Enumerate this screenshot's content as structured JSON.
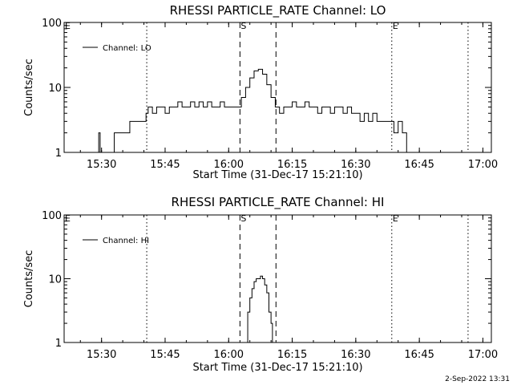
{
  "footer": {
    "date": "2-Sep-2022 13:31"
  },
  "chart_data": [
    {
      "type": "line",
      "title": "RHESSI PARTICLE_RATE Channel: LO",
      "xlabel": "Start Time (31-Dec-17 15:21:10)",
      "ylabel": "Counts/sec",
      "yscale": "log",
      "ylim": [
        1,
        100
      ],
      "xlim": [
        "15:21:10",
        "17:02:00"
      ],
      "x_ticks": [
        "15:30",
        "15:45",
        "16:00",
        "16:15",
        "16:30",
        "16:45",
        "17:00"
      ],
      "y_ticks": [
        "1",
        "10",
        "100"
      ],
      "legend": "Channel: LO",
      "legend_position": "top-left",
      "markers": [
        {
          "label": "E",
          "time": "15:21:10",
          "style": "none"
        },
        {
          "label": "",
          "time": "15:40:40",
          "style": "dotted"
        },
        {
          "label": "S",
          "time": "16:02:40",
          "style": "dashed"
        },
        {
          "label": "",
          "time": "16:11:10",
          "style": "dashed"
        },
        {
          "label": "E",
          "time": "16:38:30",
          "style": "dotted"
        },
        {
          "label": "",
          "time": "16:56:30",
          "style": "dotted"
        }
      ],
      "series": [
        {
          "x": [
            "15:29:00",
            "15:29:20",
            "15:29:40",
            "15:30:00",
            "15:30:20",
            "15:33:00",
            "15:33:30",
            "15:36:40",
            "15:37:10",
            "15:40:30",
            "15:41:00",
            "15:41:30",
            "15:42:00",
            "15:43:00",
            "15:44:00",
            "15:45:00",
            "15:46:00",
            "15:47:00",
            "15:48:00",
            "15:49:00",
            "15:50:00",
            "15:51:00",
            "15:52:00",
            "15:53:00",
            "15:54:00",
            "15:55:00",
            "15:56:00",
            "15:57:00",
            "15:58:00",
            "15:59:00",
            "16:00:00",
            "16:01:00",
            "16:02:00",
            "16:03:00",
            "16:04:00",
            "16:05:00",
            "16:06:00",
            "16:07:00",
            "16:08:00",
            "16:09:00",
            "16:10:00",
            "16:11:00",
            "16:12:00",
            "16:13:00",
            "16:14:00",
            "16:15:00",
            "16:16:00",
            "16:17:00",
            "16:18:00",
            "16:19:00",
            "16:20:00",
            "16:21:00",
            "16:22:00",
            "16:23:00",
            "16:24:00",
            "16:25:00",
            "16:26:00",
            "16:27:00",
            "16:28:00",
            "16:29:00",
            "16:30:00",
            "16:31:00",
            "16:32:00",
            "16:33:00",
            "16:34:00",
            "16:35:00",
            "16:36:00",
            "16:37:00",
            "16:38:00",
            "16:39:00",
            "16:40:00",
            "16:41:00",
            "16:42:00",
            "16:43:00",
            "16:43:40",
            "16:44:00"
          ],
          "values": [
            1,
            2,
            1,
            1,
            1,
            2,
            2,
            3,
            3,
            4,
            5,
            5,
            4,
            5,
            5,
            4,
            5,
            5,
            6,
            5,
            5,
            6,
            5,
            6,
            5,
            6,
            5,
            5,
            6,
            5,
            5,
            5,
            5,
            7,
            10,
            14,
            18,
            19,
            16,
            11,
            7,
            5,
            4,
            5,
            5,
            6,
            5,
            5,
            6,
            5,
            5,
            4,
            5,
            5,
            4,
            5,
            5,
            4,
            5,
            4,
            4,
            3,
            4,
            3,
            4,
            3,
            3,
            3,
            3,
            2,
            3,
            2,
            1,
            1,
            1,
            1
          ]
        }
      ]
    },
    {
      "type": "line",
      "title": "RHESSI PARTICLE_RATE Channel: HI",
      "xlabel": "Start Time (31-Dec-17 15:21:10)",
      "ylabel": "Counts/sec",
      "yscale": "log",
      "ylim": [
        1,
        100
      ],
      "xlim": [
        "15:21:10",
        "17:02:00"
      ],
      "x_ticks": [
        "15:30",
        "15:45",
        "16:00",
        "16:15",
        "16:30",
        "16:45",
        "17:00"
      ],
      "y_ticks": [
        "1",
        "10",
        "100"
      ],
      "legend": "Channel: HI",
      "legend_position": "top-left",
      "markers": [
        {
          "label": "E",
          "time": "15:21:10",
          "style": "none"
        },
        {
          "label": "",
          "time": "15:40:40",
          "style": "dotted"
        },
        {
          "label": "S",
          "time": "16:02:40",
          "style": "dashed"
        },
        {
          "label": "",
          "time": "16:11:10",
          "style": "dashed"
        },
        {
          "label": "E",
          "time": "16:38:30",
          "style": "dotted"
        },
        {
          "label": "",
          "time": "16:56:30",
          "style": "dotted"
        }
      ],
      "series": [
        {
          "x": [
            "16:03:50",
            "16:04:30",
            "16:05:00",
            "16:05:30",
            "16:06:00",
            "16:06:30",
            "16:07:00",
            "16:07:30",
            "16:08:00",
            "16:08:30",
            "16:09:00",
            "16:09:30",
            "16:10:00",
            "16:10:20"
          ],
          "values": [
            1,
            3,
            5,
            7,
            9,
            10,
            10,
            11,
            10,
            8,
            6,
            3,
            2,
            1
          ]
        }
      ]
    }
  ]
}
